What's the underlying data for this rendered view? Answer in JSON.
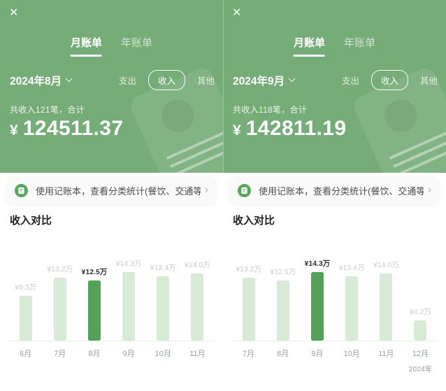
{
  "icons": {
    "close": "✕",
    "chevron_right": "›"
  },
  "colors": {
    "header_green": "#76ac78",
    "bar_light": "#d8ebd7",
    "bar_highlight": "#55a159",
    "banner_bg": "#fafafa"
  },
  "panels": [
    {
      "tabs": {
        "monthly": "月账单",
        "yearly": "年账单",
        "active": "月账单"
      },
      "month_selector": "2024年8月",
      "filters": {
        "expense": "支出",
        "income": "收入",
        "other": "其他",
        "selected": "收入"
      },
      "summary": "共收入121笔，合计",
      "currency": "¥",
      "amount": "124511.37",
      "banner_text": "使用记账本，查看分类统计(餐饮、交通等)",
      "section_title": "收入对比"
    },
    {
      "tabs": {
        "monthly": "月账单",
        "yearly": "年账单",
        "active": "月账单"
      },
      "month_selector": "2024年9月",
      "filters": {
        "expense": "支出",
        "income": "收入",
        "other": "其他",
        "selected": "收入"
      },
      "summary": "共收入118笔，合计",
      "currency": "¥",
      "amount": "142811.19",
      "banner_text": "使用记账本，查看分类统计(餐饮、交通等)",
      "section_title": "收入对比"
    }
  ],
  "chart_data": [
    {
      "type": "bar",
      "title": "收入对比",
      "categories": [
        "6月",
        "7月",
        "8月",
        "9月",
        "10月",
        "11月"
      ],
      "values": [
        9.3,
        13.2,
        12.5,
        14.3,
        13.4,
        14.0
      ],
      "labels": [
        "¥9.3万",
        "¥13.2万",
        "¥12.5万",
        "¥14.3万",
        "¥13.4万",
        "¥14.0万"
      ],
      "highlight_index": 2,
      "unit": "万",
      "ylim": [
        0,
        15
      ],
      "grid": false,
      "legend": "none",
      "bar_color": "#d8ebd7",
      "highlight_color": "#55a159",
      "axis_note": ""
    },
    {
      "type": "bar",
      "title": "收入对比",
      "categories": [
        "7月",
        "8月",
        "9月",
        "10月",
        "11月",
        "12月"
      ],
      "values": [
        13.2,
        12.5,
        14.3,
        13.4,
        14.0,
        4.2
      ],
      "labels": [
        "¥13.2万",
        "¥12.5万",
        "¥14.3万",
        "¥13.4万",
        "¥14.0万",
        "¥4.2万"
      ],
      "highlight_index": 2,
      "unit": "万",
      "ylim": [
        0,
        15
      ],
      "grid": false,
      "legend": "none",
      "bar_color": "#d8ebd7",
      "highlight_color": "#55a159",
      "axis_note": "2024年"
    }
  ]
}
